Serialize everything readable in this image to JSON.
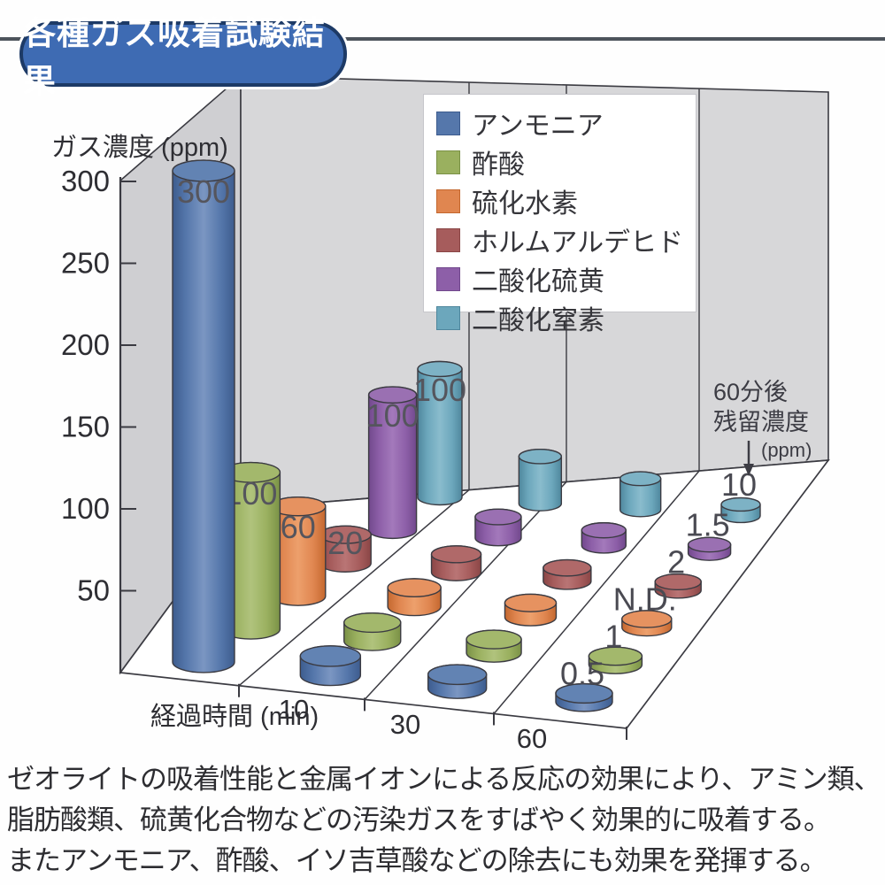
{
  "header": {
    "badge": "各種ガス吸着試験結果"
  },
  "chart_data": {
    "type": "bar",
    "subtype": "3d-cylinder",
    "title": "各種ガス吸着試験結果",
    "ylabel": "ガス濃度 (ppm)",
    "xlabel": "経過時間 (min)",
    "ylim": [
      0,
      300
    ],
    "y_ticks": [
      50,
      100,
      150,
      200,
      250,
      300
    ],
    "x_tick_labels": [
      "10",
      "30",
      "60"
    ],
    "times_min": [
      0,
      10,
      30,
      60
    ],
    "legend_position": "upper-center-on-wall",
    "grid": true,
    "annotation": {
      "lines": [
        "60分後",
        "残留濃度"
      ],
      "unit": "(ppm)",
      "arrow": "down"
    },
    "series": [
      {
        "name": "アンモニア",
        "values": [
          300,
          12,
          9,
          0.5
        ],
        "start_label": "300",
        "end_label": "0.5",
        "color": "#5577ab",
        "color_dark": "#3d5c8e",
        "color_light": "#7b96c2",
        "color_top": "#6283b3"
      },
      {
        "name": "酢酸",
        "values": [
          100,
          12,
          9,
          1
        ],
        "start_label": "100",
        "end_label": "1",
        "color": "#9ab05f",
        "color_dark": "#7a9146",
        "color_light": "#b0c37d",
        "color_top": "#a3b86c"
      },
      {
        "name": "硫化水素",
        "values": [
          60,
          13,
          10,
          0
        ],
        "start_label": "60",
        "end_label": "N.D.",
        "color": "#e08650",
        "color_dark": "#c4682f",
        "color_light": "#eda06c",
        "color_top": "#e69260"
      },
      {
        "name": "ホルムアルデヒド",
        "values": [
          20,
          13,
          10,
          2
        ],
        "start_label": "20",
        "end_label": "2",
        "color": "#a65c5c",
        "color_dark": "#8a4646",
        "color_light": "#b97575",
        "color_top": "#b06969"
      },
      {
        "name": "二酸化硫黄",
        "values": [
          100,
          16,
          12,
          1.5
        ],
        "start_label": "100",
        "end_label": "1.5",
        "color": "#8d5fa8",
        "color_dark": "#71488c",
        "color_light": "#a379bb",
        "color_top": "#9a70b2"
      },
      {
        "name": "二酸化窒素",
        "values": [
          100,
          38,
          26,
          10
        ],
        "start_label": "100",
        "end_label": "10",
        "color": "#6ca7bc",
        "color_dark": "#4f879d",
        "color_light": "#8abccd",
        "color_top": "#7db2c5"
      }
    ]
  },
  "footer": {
    "lines": [
      "ゼオライトの吸着性能と金属イオンによる反応の効果により、アミン類、",
      "脂肪酸類、硫黄化合物などの汚染ガスをすばやく効果的に吸着する。",
      "またアンモニア、酢酸、イソ吉草酸などの除去にも効果を発揮する。"
    ]
  }
}
